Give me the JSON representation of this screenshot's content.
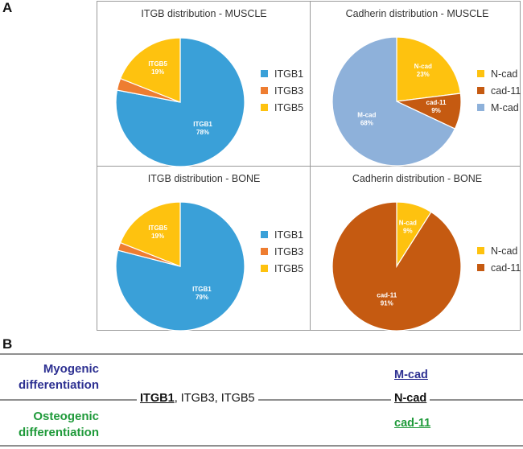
{
  "panel_a_letter": "A",
  "panel_b_letter": "B",
  "colors": {
    "itgb1": "#3aa0d8",
    "itgb3": "#ee7d31",
    "itgb5": "#fec20f",
    "ncad": "#fec20f",
    "cad11": "#c55a11",
    "mcad": "#8eb1da",
    "myogenic": "#2e3192",
    "osteogenic": "#1f9a3a"
  },
  "chart_data": [
    {
      "type": "pie",
      "title": "ITGB distribution - MUSCLE",
      "categories": [
        "ITGB1",
        "ITGB3",
        "ITGB5"
      ],
      "values": [
        78,
        3,
        19
      ],
      "data_labels": [
        "ITGB1\n78%",
        "",
        "ITGB5\n19%"
      ],
      "legend": [
        "ITGB1",
        "ITGB3",
        "ITGB5"
      ],
      "legend_position": "right"
    },
    {
      "type": "pie",
      "title": "Cadherin distribution - MUSCLE",
      "categories": [
        "N-cad",
        "cad-11",
        "M-cad"
      ],
      "values": [
        23,
        9,
        68
      ],
      "data_labels": [
        "N-cad\n23%",
        "cad-11\n9%",
        "M-cad\n68%"
      ],
      "legend": [
        "N-cad",
        "cad-11",
        "M-cad"
      ],
      "legend_position": "right"
    },
    {
      "type": "pie",
      "title": "ITGB distribution - BONE",
      "categories": [
        "ITGB1",
        "ITGB3",
        "ITGB5"
      ],
      "values": [
        79,
        2,
        19
      ],
      "data_labels": [
        "ITGB1\n79%",
        "",
        "ITGB5\n19%"
      ],
      "legend": [
        "ITGB1",
        "ITGB3",
        "ITGB5"
      ],
      "legend_position": "right"
    },
    {
      "type": "pie",
      "title": "Cadherin distribution - BONE",
      "categories": [
        "N-cad",
        "cad-11"
      ],
      "values": [
        9,
        91
      ],
      "data_labels": [
        "N-cad\n9%",
        "cad-11\n91%"
      ],
      "legend": [
        "N-cad",
        "cad-11"
      ],
      "legend_position": "right"
    }
  ],
  "panel_b": {
    "myogenic_label": "Myogenic differentiation",
    "osteogenic_label": "Osteogenic differentiation",
    "itgb_primary": "ITGB1",
    "itgb_rest": ", ITGB3, ITGB5",
    "mcad": "M-cad",
    "ncad": "N-cad",
    "cad11": "cad-11"
  }
}
